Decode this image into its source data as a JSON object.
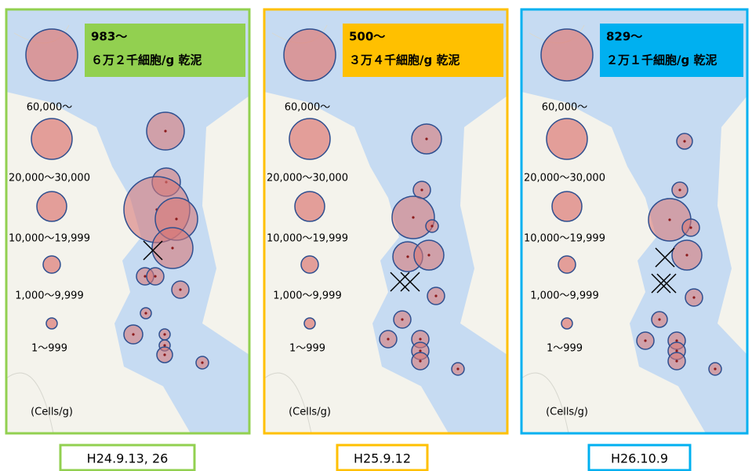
{
  "legend": {
    "labels": [
      "60,000～",
      "20,000～30,000",
      "10,000～19,999",
      "1,000～9,999",
      "1～999"
    ],
    "unit": "(Cells/g)"
  },
  "panels": [
    {
      "range": "983～",
      "summary": "６万２千細胞/g 乾泥",
      "date": "H24.9.13, 26",
      "color": "#92d050"
    },
    {
      "range": "500～",
      "summary": "３万４千細胞/g 乾泥",
      "date": "H25.9.12",
      "color": "#ffc000"
    },
    {
      "range": "829～",
      "summary": "２万１千細胞/g 乾泥",
      "date": "H26.10.9",
      "color": "#00b0f0"
    }
  ]
}
